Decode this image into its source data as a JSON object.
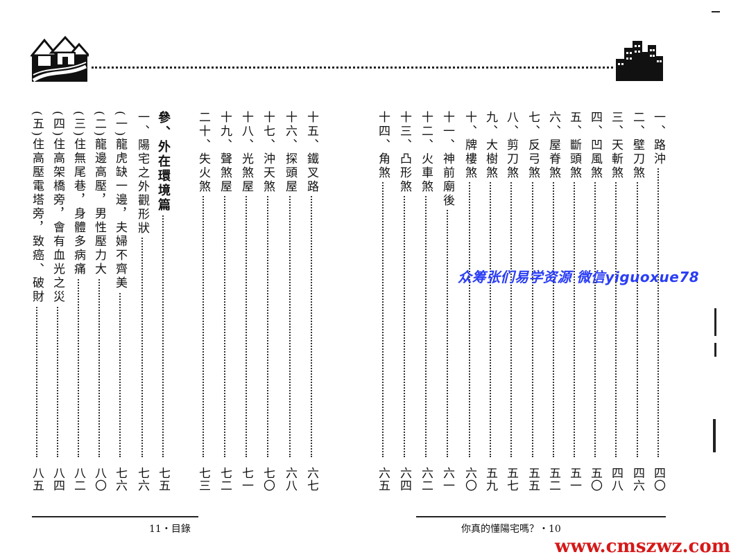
{
  "left_page": {
    "columns": [
      {
        "label": "參、外在環境篇",
        "page": "七五",
        "section": true
      },
      {
        "label": "一、陽宅之外觀形狀",
        "page": "七六"
      },
      {
        "label": "(一)龍虎缺一邊，夫婦不齊美",
        "page": "七六"
      },
      {
        "label": "(二)龍邊高壓，男性壓力大",
        "page": "八〇"
      },
      {
        "label": "(三)住無尾巷，身體多病痛",
        "page": "八二"
      },
      {
        "label": "(四)住高架橋旁，會有血光之災",
        "page": "八四"
      },
      {
        "label": "(五)住高壓電塔旁，致癌、破財",
        "page": "八五"
      }
    ],
    "footer": "11・目錄"
  },
  "middle_columns": [
    {
      "label": "十五、鐵叉路",
      "page": "六七"
    },
    {
      "label": "十六、探頭屋",
      "page": "六八"
    },
    {
      "label": "十七、沖天煞",
      "page": "七〇"
    },
    {
      "label": "十八、光煞屋",
      "page": "七一"
    },
    {
      "label": "十九、聲煞屋",
      "page": "七二"
    },
    {
      "label": "二十、失火煞",
      "page": "七三"
    }
  ],
  "right_page": {
    "columns": [
      {
        "label": "一、路沖",
        "page": "四〇"
      },
      {
        "label": "二、壁刀煞",
        "page": "四六"
      },
      {
        "label": "三、天斬煞",
        "page": "四八"
      },
      {
        "label": "四、凹風煞",
        "page": "五〇"
      },
      {
        "label": "五、斷頭煞",
        "page": "五一"
      },
      {
        "label": "六、屋脊煞",
        "page": "五二"
      },
      {
        "label": "七、反弓煞",
        "page": "五五"
      },
      {
        "label": "八、剪刀煞",
        "page": "五七"
      },
      {
        "label": "九、大樹煞",
        "page": "五九"
      },
      {
        "label": "十、牌樓煞",
        "page": "六〇"
      },
      {
        "label": "十一、神前廟後",
        "page": "六一"
      },
      {
        "label": "十二、火車煞",
        "page": "六二"
      },
      {
        "label": "十三、凸形煞",
        "page": "六四"
      },
      {
        "label": "十四、角煞",
        "page": "六五"
      }
    ],
    "footer": "你真的懂陽宅嗎？・10"
  },
  "watermark": "众筹张们易学资源 微信yiguoxue78",
  "site_mark": "www.cmszwz.com"
}
